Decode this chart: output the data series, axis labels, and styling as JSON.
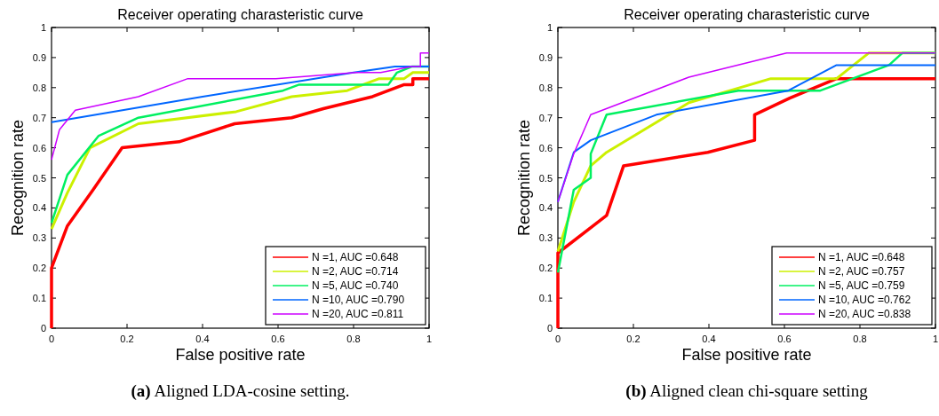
{
  "chart_data": [
    {
      "type": "line",
      "title": "Receiver operating charasteristic curve",
      "xlabel": "False positive rate",
      "ylabel": "Recognition rate",
      "xlim": [
        0,
        1
      ],
      "ylim": [
        0,
        1
      ],
      "xticks": [
        0,
        0.2,
        0.4,
        0.6,
        0.8,
        1
      ],
      "yticks": [
        0,
        0.1,
        0.2,
        0.3,
        0.4,
        0.5,
        0.6,
        0.7,
        0.8,
        0.9,
        1
      ],
      "legend": "bottom right",
      "annotations": [
        "(a) Aligned LDA-cosine setting."
      ],
      "series": [
        {
          "name": "N =1, AUC =0.648",
          "color": "#ff0000",
          "x": [
            0,
            0,
            0.042,
            0.11,
            0.187,
            0.338,
            0.485,
            0.636,
            0.72,
            0.85,
            0.934,
            0.957,
            0.957,
            1
          ],
          "values": [
            0,
            0.2,
            0.34,
            0.46,
            0.6,
            0.62,
            0.68,
            0.7,
            0.73,
            0.77,
            0.81,
            0.81,
            0.83,
            0.83
          ]
        },
        {
          "name": "N =2, AUC =0.714",
          "color": "#ccf000",
          "x": [
            0,
            0.042,
            0.102,
            0.23,
            0.489,
            0.636,
            0.783,
            0.868,
            0.934,
            0.957,
            1
          ],
          "values": [
            0.33,
            0.45,
            0.6,
            0.68,
            0.72,
            0.77,
            0.79,
            0.83,
            0.83,
            0.85,
            0.85
          ]
        },
        {
          "name": "N =5, AUC =0.740",
          "color": "#00f060",
          "x": [
            0,
            0.042,
            0.125,
            0.23,
            0.613,
            0.656,
            0.892,
            0.915,
            0.954,
            1
          ],
          "values": [
            0.35,
            0.51,
            0.64,
            0.7,
            0.79,
            0.81,
            0.81,
            0.85,
            0.87,
            0.87
          ]
        },
        {
          "name": "N =10, AUC =0.790",
          "color": "#0066ff",
          "x": [
            0,
            0.4,
            0.8,
            0.91,
            1
          ],
          "values": [
            0.685,
            0.77,
            0.85,
            0.87,
            0.87
          ]
        },
        {
          "name": "N =20, AUC =0.811",
          "color": "#cc00ff",
          "x": [
            0,
            0.021,
            0.063,
            0.23,
            0.361,
            0.594,
            0.806,
            0.872,
            0.954,
            0.977,
            0.977,
            1
          ],
          "values": [
            0.56,
            0.66,
            0.725,
            0.77,
            0.83,
            0.83,
            0.85,
            0.85,
            0.87,
            0.87,
            0.915,
            0.915
          ]
        }
      ]
    },
    {
      "type": "line",
      "title": "Receiver operating charasteristic curve",
      "xlabel": "False positive rate",
      "ylabel": "Recognition rate",
      "xlim": [
        0,
        1
      ],
      "ylim": [
        0,
        1
      ],
      "xticks": [
        0,
        0.2,
        0.4,
        0.6,
        0.8,
        1
      ],
      "yticks": [
        0,
        0.1,
        0.2,
        0.3,
        0.4,
        0.5,
        0.6,
        0.7,
        0.8,
        0.9,
        1
      ],
      "legend": "bottom right",
      "annotations": [
        "(b) Aligned clean chi-square setting"
      ],
      "series": [
        {
          "name": "N =1, AUC =0.648",
          "color": "#ff0000",
          "x": [
            0,
            0,
            0.129,
            0.174,
            0.397,
            0.521,
            0.521,
            0.614,
            0.738,
            1
          ],
          "values": [
            0,
            0.25,
            0.375,
            0.54,
            0.585,
            0.625,
            0.71,
            0.765,
            0.83,
            0.83
          ]
        },
        {
          "name": "N =2, AUC =0.757",
          "color": "#ccf000",
          "x": [
            0,
            0.042,
            0.087,
            0.129,
            0.347,
            0.564,
            0.738,
            0.823,
            1
          ],
          "values": [
            0.255,
            0.42,
            0.54,
            0.585,
            0.75,
            0.83,
            0.83,
            0.915,
            0.915
          ]
        },
        {
          "name": "N =5, AUC =0.759",
          "color": "#00f060",
          "x": [
            0,
            0.042,
            0.087,
            0.087,
            0.129,
            0.478,
            0.695,
            0.877,
            0.912,
            1
          ],
          "values": [
            0.185,
            0.46,
            0.5,
            0.58,
            0.71,
            0.79,
            0.79,
            0.875,
            0.915,
            0.915
          ]
        },
        {
          "name": "N =10, AUC =0.762",
          "color": "#0066ff",
          "x": [
            0,
            0.042,
            0.087,
            0.261,
            0.61,
            0.738,
            1
          ],
          "values": [
            0.42,
            0.585,
            0.625,
            0.71,
            0.79,
            0.875,
            0.875
          ]
        },
        {
          "name": "N =20, AUC =0.838",
          "color": "#cc00ff",
          "x": [
            0,
            0.042,
            0.087,
            0.347,
            0.606,
            1
          ],
          "values": [
            0.42,
            0.58,
            0.71,
            0.835,
            0.915,
            0.915
          ]
        }
      ]
    }
  ]
}
